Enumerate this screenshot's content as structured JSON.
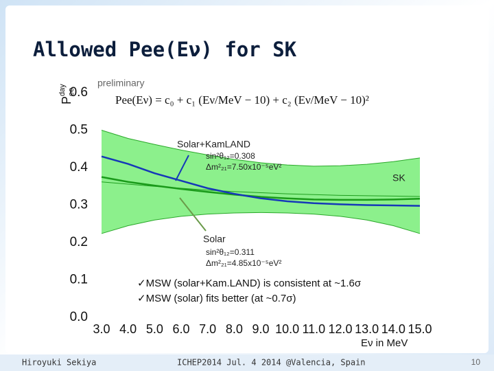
{
  "chart_data": {
    "type": "line",
    "title": "Allowed Pee(Eν) for SK",
    "ylabel": {
      "main": "P",
      "sub": "ee",
      "sup": "day"
    },
    "xlabel": "Eν in MeV",
    "x": [
      3,
      4,
      5,
      6,
      7,
      8,
      9,
      10,
      11,
      12,
      13,
      14,
      15
    ],
    "xlim": [
      3,
      15
    ],
    "xticks": [
      {
        "value": 3,
        "label": "3.0"
      },
      {
        "value": 4,
        "label": "4.0"
      },
      {
        "value": 5,
        "label": "5.0"
      },
      {
        "value": 6,
        "label": "6.0"
      },
      {
        "value": 7,
        "label": "7.0"
      },
      {
        "value": 8,
        "label": "8.0"
      },
      {
        "value": 9,
        "label": "9.0"
      },
      {
        "value": 10,
        "label": "10.0"
      },
      {
        "value": 11,
        "label": "11.0"
      },
      {
        "value": 12,
        "label": "12.0"
      },
      {
        "value": 13,
        "label": "13.0"
      },
      {
        "value": 14,
        "label": "14.0"
      },
      {
        "value": 15,
        "label": "15.0"
      }
    ],
    "ylim": [
      0,
      0.6
    ],
    "yticks": [
      {
        "value": 0,
        "label": "0.0"
      },
      0.1,
      0.2,
      0.3,
      0.4,
      0.5,
      0.6
    ],
    "grid": false,
    "band": {
      "color": "#8cf08c",
      "upper": [
        0.5,
        0.478,
        0.462,
        0.447,
        0.434,
        0.422,
        0.413,
        0.407,
        0.404,
        0.405,
        0.409,
        0.416,
        0.426
      ],
      "lower": [
        0.224,
        0.245,
        0.26,
        0.27,
        0.276,
        0.279,
        0.28,
        0.279,
        0.276,
        0.27,
        0.26,
        0.245,
        0.224
      ]
    },
    "series": [
      {
        "name": "SK",
        "color": "#1e9e1e",
        "width": 1,
        "values": [
          0.362,
          0.356,
          0.35,
          0.345,
          0.34,
          0.336,
          0.333,
          0.33,
          0.328,
          0.326,
          0.325,
          0.324,
          0.323
        ]
      },
      {
        "name": "Solar",
        "color": "#1a9a1a",
        "width": 2.5,
        "values": [
          0.375,
          0.362,
          0.352,
          0.343,
          0.335,
          0.328,
          0.322,
          0.318,
          0.315,
          0.314,
          0.314,
          0.315,
          0.317
        ]
      },
      {
        "name": "Solar+KamLAND",
        "color": "#1538b8",
        "width": 2.5,
        "values": [
          0.43,
          0.41,
          0.385,
          0.365,
          0.345,
          0.33,
          0.318,
          0.31,
          0.305,
          0.302,
          0.3,
          0.299,
          0.298
        ]
      }
    ],
    "annotations": {
      "preliminary": "preliminary",
      "formula": "Pee(Eν) = c₀ + c₁ (Eν/MeV − 10) + c₂ (Eν/MeV − 10)²",
      "kl_sin": "sin²θ₁₂=0.308",
      "kl_dm": "Δm²₂₁=7.50x10⁻⁵eV²",
      "solar_sin": "sin²θ₁₂=0.311",
      "solar_dm": "Δm²₂₁=4.85x10⁻⁵eV²",
      "check1": "✓MSW (solar+Kam.LAND) is consistent at ~1.6σ",
      "check2": "✓MSW (solar) fits better (at ~0.7σ)"
    }
  },
  "footer": {
    "author": "Hiroyuki Sekiya",
    "event": "ICHEP2014  Jul. 4 2014  @Valencia, Spain",
    "page": "10"
  }
}
